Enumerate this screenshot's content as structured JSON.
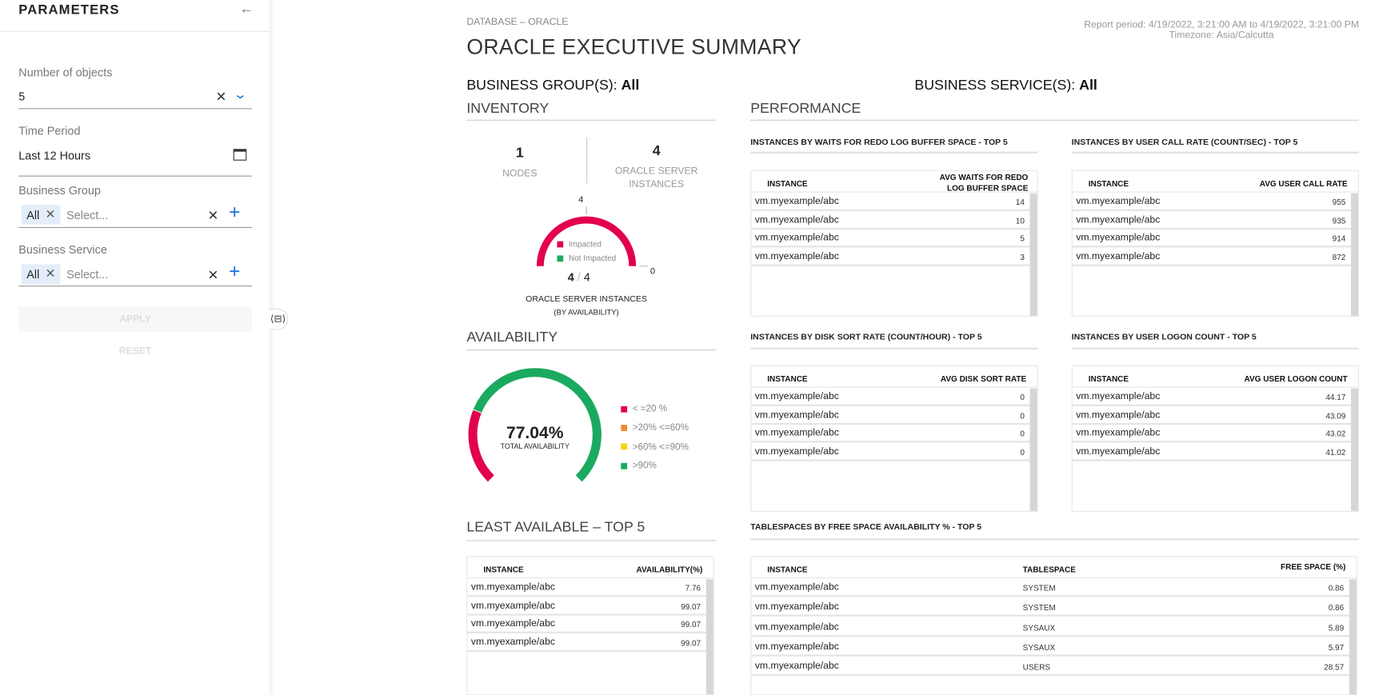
{
  "sidebar": {
    "title": "PARAMETERS",
    "number_of_objects": {
      "label": "Number of objects",
      "value": "5"
    },
    "time_period": {
      "label": "Time Period",
      "value": "Last 12 Hours"
    },
    "business_group": {
      "label": "Business Group",
      "chip": "All",
      "placeholder": "Select..."
    },
    "business_service": {
      "label": "Business Service",
      "chip": "All",
      "placeholder": "Select..."
    },
    "apply_label": "APPLY",
    "reset_label": "RESET"
  },
  "header": {
    "breadcrumb": "DATABASE – ORACLE",
    "title": "ORACLE EXECUTIVE SUMMARY",
    "report_period": "Report period: 4/19/2022, 3:21:00 AM to 4/19/2022, 3:21:00 PM",
    "timezone": "Timezone:  Asia/Calcutta",
    "business_group_label": "BUSINESS GROUP(S):",
    "business_group_value": "All",
    "business_service_label": "BUSINESS SERVICE(S):",
    "business_service_value": "All"
  },
  "inventory": {
    "title": "INVENTORY",
    "nodes_value": "1",
    "nodes_label": "NODES",
    "instances_value": "4",
    "instances_label_1": "ORACLE SERVER",
    "instances_label_2": "INSTANCES",
    "gauge": {
      "max_label": "4",
      "min_label": "0",
      "impacted": 4,
      "total": 4,
      "impacted_text": "4",
      "total_text": "4",
      "legend": [
        {
          "label": "Impacted",
          "color": "#e2004f"
        },
        {
          "label": "Not Impacted",
          "color": "#1aaa5f"
        }
      ],
      "caption_1": "ORACLE SERVER INSTANCES",
      "caption_2": "(BY AVAILABILITY)"
    }
  },
  "availability": {
    "title": "AVAILABILITY",
    "value": "77.04%",
    "value_label": "TOTAL AVAILABILITY",
    "segments": [
      {
        "label": "< =20 %",
        "color": "#e2004f",
        "count": 1
      },
      {
        "label": ">20% <=60%",
        "color": "#f28a2e",
        "count": 0
      },
      {
        "label": ">60% <=90%",
        "color": "#fad213",
        "count": 0
      },
      {
        "label": ">90%",
        "color": "#1aaa5f",
        "count": 3
      }
    ]
  },
  "least_available": {
    "title": "LEAST AVAILABLE – TOP 5",
    "columns": [
      "INSTANCE",
      "AVAILABILITY(%)"
    ],
    "rows": [
      [
        "vm.myexample/abc",
        "7.76"
      ],
      [
        "vm.myexample/abc",
        "99.07"
      ],
      [
        "vm.myexample/abc",
        "99.07"
      ],
      [
        "vm.myexample/abc",
        "99.07"
      ]
    ]
  },
  "performance": {
    "title": "PERFORMANCE",
    "redo": {
      "title": "INSTANCES BY WAITS FOR REDO LOG BUFFER SPACE - TOP 5",
      "columns": [
        "INSTANCE",
        "AVG WAITS FOR REDO",
        "LOG BUFFER SPACE"
      ],
      "rows": [
        [
          "vm.myexample/abc",
          "14"
        ],
        [
          "vm.myexample/abc",
          "10"
        ],
        [
          "vm.myexample/abc",
          "5"
        ],
        [
          "vm.myexample/abc",
          "3"
        ]
      ]
    },
    "call_rate": {
      "title": "INSTANCES BY USER CALL RATE (COUNT/SEC) - TOP 5",
      "columns": [
        "INSTANCE",
        "AVG USER CALL RATE"
      ],
      "rows": [
        [
          "vm.myexample/abc",
          "955"
        ],
        [
          "vm.myexample/abc",
          "935"
        ],
        [
          "vm.myexample/abc",
          "914"
        ],
        [
          "vm.myexample/abc",
          "872"
        ]
      ]
    },
    "disk_sort": {
      "title": "INSTANCES BY DISK SORT RATE (COUNT/HOUR) - TOP 5",
      "columns": [
        "INSTANCE",
        "AVG DISK SORT RATE"
      ],
      "rows": [
        [
          "vm.myexample/abc",
          "0"
        ],
        [
          "vm.myexample/abc",
          "0"
        ],
        [
          "vm.myexample/abc",
          "0"
        ],
        [
          "vm.myexample/abc",
          "0"
        ]
      ]
    },
    "logon": {
      "title": "INSTANCES BY USER LOGON COUNT - TOP 5",
      "columns": [
        "INSTANCE",
        "AVG USER LOGON COUNT"
      ],
      "rows": [
        [
          "vm.myexample/abc",
          "44.17"
        ],
        [
          "vm.myexample/abc",
          "43.09"
        ],
        [
          "vm.myexample/abc",
          "43.02"
        ],
        [
          "vm.myexample/abc",
          "41.02"
        ]
      ]
    },
    "tablespaces": {
      "title": "TABLESPACES BY FREE SPACE AVAILABILITY % - TOP 5",
      "columns": [
        "INSTANCE",
        "TABLESPACE",
        "FREE SPACE (%)"
      ],
      "rows": [
        [
          "vm.myexample/abc",
          "SYSTEM",
          "0.86"
        ],
        [
          "vm.myexample/abc",
          "SYSTEM",
          "0.86"
        ],
        [
          "vm.myexample/abc",
          "SYSAUX",
          "5.89"
        ],
        [
          "vm.myexample/abc",
          "SYSAUX",
          "5.97"
        ],
        [
          "vm.myexample/abc",
          "USERS",
          "28.57"
        ]
      ]
    }
  }
}
